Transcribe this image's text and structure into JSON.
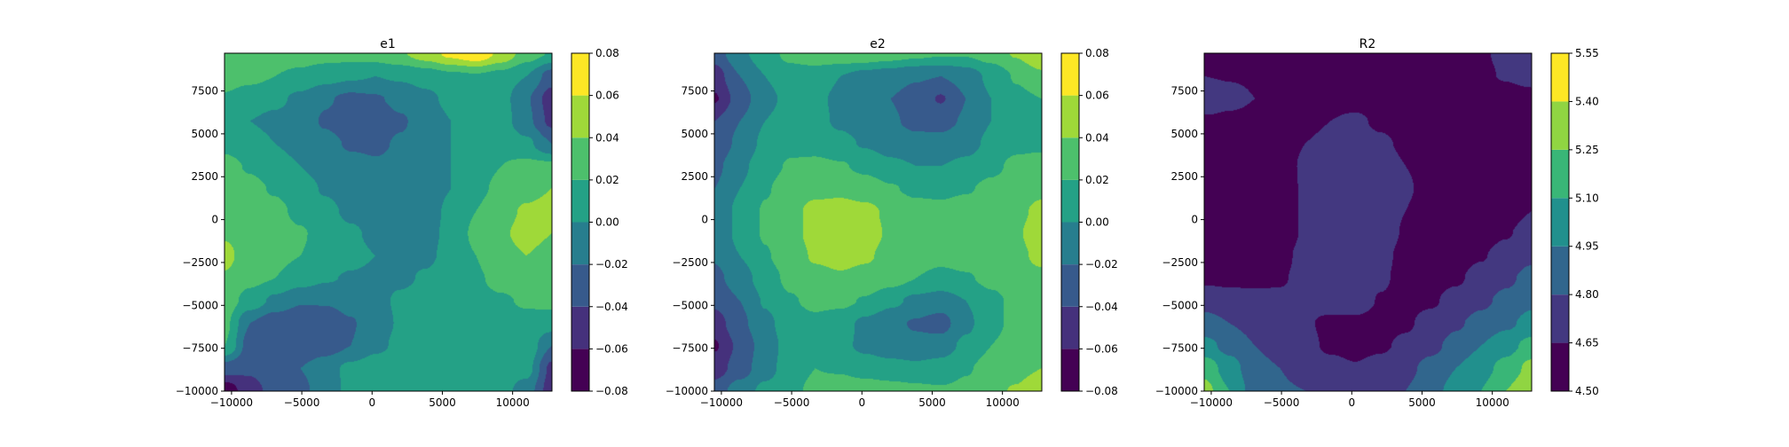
{
  "chart_data": [
    {
      "type": "contour",
      "title": "e1",
      "xlim": [
        -10500,
        12800
      ],
      "ylim": [
        -10000,
        9700
      ],
      "xticks": [
        -10000,
        -5000,
        0,
        5000,
        10000
      ],
      "xtick_labels": [
        "−10000",
        "−5000",
        "0",
        "5000",
        "10000"
      ],
      "yticks": [
        -10000,
        -7500,
        -5000,
        -2500,
        0,
        2500,
        5000,
        7500
      ],
      "ytick_labels": [
        "−10000",
        "−7500",
        "−5000",
        "−2500",
        "0",
        "2500",
        "5000",
        "7500"
      ],
      "levels": [
        -0.08,
        -0.06,
        -0.04,
        -0.02,
        0.0,
        0.02,
        0.04,
        0.06,
        0.08
      ],
      "colorbar_ticks": [
        -0.08,
        -0.06,
        -0.04,
        -0.02,
        0.0,
        0.02,
        0.04,
        0.06,
        0.08
      ],
      "colorbar_labels": [
        "−0.08",
        "−0.06",
        "−0.04",
        "−0.02",
        "0.00",
        "0.02",
        "0.04",
        "0.06",
        "0.08"
      ],
      "colormap": "viridis",
      "grid_shape": [
        16,
        14
      ],
      "z": [
        [
          -0.075,
          -0.045,
          -0.035,
          -0.025,
          -0.01,
          0.005,
          0.012,
          0.012,
          0.008,
          0.0,
          0.002,
          0.008,
          -0.01,
          -0.05
        ],
        [
          -0.03,
          -0.038,
          -0.032,
          -0.02,
          -0.008,
          0.005,
          0.012,
          0.015,
          0.012,
          0.005,
          0.003,
          0.01,
          0.008,
          -0.045
        ],
        [
          0.02,
          -0.03,
          -0.035,
          -0.035,
          -0.03,
          -0.02,
          -0.005,
          0.005,
          0.01,
          0.01,
          0.007,
          0.012,
          0.015,
          -0.02
        ],
        [
          0.025,
          -0.02,
          -0.035,
          -0.038,
          -0.035,
          -0.022,
          -0.008,
          0.002,
          0.01,
          0.012,
          0.012,
          0.012,
          0.015,
          0.01
        ],
        [
          0.03,
          0.012,
          -0.005,
          -0.018,
          -0.018,
          -0.012,
          -0.005,
          0.003,
          0.008,
          0.012,
          0.015,
          0.018,
          0.022,
          0.025
        ],
        [
          0.038,
          0.025,
          0.02,
          0.01,
          0.002,
          -0.002,
          -0.004,
          -0.003,
          0.002,
          0.01,
          0.018,
          0.025,
          0.03,
          0.03
        ],
        [
          0.045,
          0.03,
          0.025,
          0.02,
          0.012,
          0.005,
          0.0,
          -0.004,
          -0.003,
          0.005,
          0.02,
          0.035,
          0.04,
          0.035
        ],
        [
          0.038,
          0.032,
          0.028,
          0.022,
          0.012,
          0.003,
          -0.004,
          -0.008,
          -0.006,
          0.005,
          0.025,
          0.038,
          0.045,
          0.04
        ],
        [
          0.032,
          0.03,
          0.025,
          0.015,
          0.005,
          -0.004,
          -0.01,
          -0.012,
          -0.008,
          0.004,
          0.02,
          0.035,
          0.042,
          0.045
        ],
        [
          0.03,
          0.025,
          0.018,
          0.008,
          -0.002,
          -0.01,
          -0.015,
          -0.015,
          -0.01,
          0.0,
          0.015,
          0.025,
          0.035,
          0.04
        ],
        [
          0.026,
          0.018,
          0.01,
          0.0,
          -0.008,
          -0.015,
          -0.018,
          -0.016,
          -0.01,
          0.0,
          0.012,
          0.02,
          0.025,
          0.025
        ],
        [
          0.015,
          0.008,
          0.0,
          -0.008,
          -0.015,
          -0.022,
          -0.023,
          -0.018,
          -0.01,
          0.0,
          0.01,
          0.015,
          0.005,
          -0.02
        ],
        [
          0.01,
          0.0,
          -0.005,
          -0.012,
          -0.022,
          -0.03,
          -0.03,
          -0.022,
          -0.012,
          0.0,
          0.01,
          0.01,
          -0.015,
          -0.045
        ],
        [
          0.018,
          0.01,
          0.005,
          -0.005,
          -0.018,
          -0.025,
          -0.022,
          -0.015,
          -0.005,
          0.005,
          0.01,
          0.008,
          -0.018,
          -0.05
        ],
        [
          0.028,
          0.025,
          0.02,
          0.015,
          0.008,
          0.003,
          0.0,
          0.003,
          0.008,
          0.015,
          0.018,
          0.012,
          0.0,
          -0.03
        ],
        [
          0.035,
          0.032,
          0.03,
          0.03,
          0.028,
          0.028,
          0.03,
          0.038,
          0.05,
          0.065,
          0.075,
          0.055,
          0.03,
          0.018
        ]
      ]
    },
    {
      "type": "contour",
      "title": "e2",
      "xlim": [
        -10500,
        12800
      ],
      "ylim": [
        -10000,
        9700
      ],
      "xticks": [
        -10000,
        -5000,
        0,
        5000,
        10000
      ],
      "xtick_labels": [
        "−10000",
        "−5000",
        "0",
        "5000",
        "10000"
      ],
      "yticks": [
        -10000,
        -7500,
        -5000,
        -2500,
        0,
        2500,
        5000,
        7500
      ],
      "ytick_labels": [
        "−10000",
        "−7500",
        "−5000",
        "−2500",
        "0",
        "2500",
        "5000",
        "7500"
      ],
      "levels": [
        -0.08,
        -0.06,
        -0.04,
        -0.02,
        0.0,
        0.02,
        0.04,
        0.06,
        0.08
      ],
      "colorbar_ticks": [
        -0.08,
        -0.06,
        -0.04,
        -0.02,
        0.0,
        0.02,
        0.04,
        0.06,
        0.08
      ],
      "colorbar_labels": [
        "−0.08",
        "−0.06",
        "−0.04",
        "−0.02",
        "0.00",
        "0.02",
        "0.04",
        "0.06",
        "0.08"
      ],
      "colormap": "viridis",
      "grid_shape": [
        16,
        14
      ],
      "z": [
        [
          -0.03,
          -0.01,
          0.005,
          0.015,
          0.025,
          0.03,
          0.03,
          0.028,
          0.025,
          0.022,
          0.025,
          0.035,
          0.042,
          0.06
        ],
        [
          -0.05,
          -0.03,
          -0.008,
          0.01,
          0.02,
          0.018,
          0.012,
          0.008,
          0.005,
          0.008,
          0.018,
          0.028,
          0.032,
          0.04
        ],
        [
          -0.062,
          -0.035,
          -0.01,
          0.008,
          0.012,
          0.005,
          -0.005,
          -0.012,
          -0.015,
          -0.01,
          0.005,
          0.02,
          0.028,
          0.035
        ],
        [
          -0.05,
          -0.025,
          -0.005,
          0.01,
          0.015,
          0.008,
          -0.005,
          -0.015,
          -0.022,
          -0.028,
          -0.005,
          0.015,
          0.025,
          0.03
        ],
        [
          -0.035,
          -0.02,
          0.002,
          0.018,
          0.025,
          0.025,
          0.018,
          0.005,
          -0.005,
          -0.01,
          0.0,
          0.015,
          0.025,
          0.03
        ],
        [
          -0.025,
          -0.01,
          0.01,
          0.025,
          0.035,
          0.038,
          0.035,
          0.028,
          0.02,
          0.015,
          0.018,
          0.025,
          0.03,
          0.035
        ],
        [
          -0.018,
          0.0,
          0.018,
          0.032,
          0.042,
          0.045,
          0.042,
          0.035,
          0.028,
          0.025,
          0.028,
          0.032,
          0.035,
          0.045
        ],
        [
          -0.015,
          0.005,
          0.022,
          0.035,
          0.045,
          0.05,
          0.046,
          0.038,
          0.03,
          0.028,
          0.03,
          0.035,
          0.038,
          0.05
        ],
        [
          -0.015,
          0.005,
          0.022,
          0.035,
          0.045,
          0.048,
          0.045,
          0.036,
          0.028,
          0.025,
          0.03,
          0.035,
          0.035,
          0.045
        ],
        [
          -0.02,
          0.0,
          0.018,
          0.03,
          0.035,
          0.035,
          0.03,
          0.022,
          0.015,
          0.015,
          0.018,
          0.025,
          0.03,
          0.035
        ],
        [
          -0.025,
          -0.005,
          0.012,
          0.022,
          0.025,
          0.022,
          0.015,
          0.005,
          0.0,
          0.0,
          0.005,
          0.015,
          0.025,
          0.03
        ],
        [
          -0.035,
          -0.015,
          0.005,
          0.015,
          0.012,
          0.005,
          -0.002,
          -0.01,
          -0.015,
          -0.015,
          -0.008,
          0.005,
          0.015,
          0.015
        ],
        [
          -0.04,
          -0.02,
          0.0,
          0.008,
          0.005,
          -0.003,
          -0.01,
          -0.018,
          -0.024,
          -0.025,
          -0.018,
          0.0,
          0.012,
          0.01
        ],
        [
          -0.062,
          -0.03,
          -0.005,
          0.005,
          0.004,
          -0.004,
          -0.012,
          -0.02,
          -0.028,
          -0.042,
          -0.02,
          0.0,
          0.015,
          0.02
        ],
        [
          -0.05,
          -0.02,
          0.0,
          0.012,
          0.01,
          0.0,
          -0.008,
          -0.012,
          -0.018,
          -0.02,
          -0.012,
          0.005,
          0.022,
          0.035
        ],
        [
          -0.03,
          -0.005,
          0.012,
          0.025,
          0.032,
          0.036,
          0.035,
          0.03,
          0.025,
          0.022,
          0.022,
          0.03,
          0.042,
          0.06
        ]
      ]
    },
    {
      "type": "contour",
      "title": "R2",
      "xlim": [
        -10500,
        12800
      ],
      "ylim": [
        -10000,
        9700
      ],
      "xticks": [
        -10000,
        -5000,
        0,
        5000,
        10000
      ],
      "xtick_labels": [
        "−10000",
        "−5000",
        "0",
        "5000",
        "10000"
      ],
      "yticks": [
        -10000,
        -7500,
        -5000,
        -2500,
        0,
        2500,
        5000,
        7500
      ],
      "ytick_labels": [
        "−10000",
        "−7500",
        "−5000",
        "−2500",
        "0",
        "2500",
        "5000",
        "7500"
      ],
      "levels": [
        4.5,
        4.65,
        4.8,
        4.95,
        5.1,
        5.25,
        5.4,
        5.55
      ],
      "colorbar_ticks": [
        4.5,
        4.65,
        4.8,
        4.95,
        5.1,
        5.25,
        5.4,
        5.55
      ],
      "colorbar_labels": [
        "4.50",
        "4.65",
        "4.80",
        "4.95",
        "5.10",
        "5.25",
        "5.40",
        "5.55"
      ],
      "colormap": "viridis",
      "grid_shape": [
        16,
        14
      ],
      "z": [
        [
          5.3,
          5.1,
          4.88,
          4.82,
          4.8,
          4.75,
          4.7,
          4.75,
          4.8,
          4.9,
          5.0,
          5.1,
          5.25,
          5.4
        ],
        [
          5.2,
          5.02,
          4.85,
          4.8,
          4.74,
          4.69,
          4.66,
          4.7,
          4.76,
          4.85,
          4.95,
          5.05,
          5.15,
          5.3
        ],
        [
          5.0,
          4.9,
          4.8,
          4.74,
          4.68,
          4.63,
          4.61,
          4.63,
          4.68,
          4.76,
          4.85,
          4.95,
          5.05,
          5.15
        ],
        [
          4.85,
          4.8,
          4.75,
          4.7,
          4.66,
          4.63,
          4.62,
          4.6,
          4.63,
          4.7,
          4.78,
          4.85,
          4.92,
          5.0
        ],
        [
          4.75,
          4.72,
          4.69,
          4.67,
          4.67,
          4.69,
          4.72,
          4.64,
          4.61,
          4.63,
          4.7,
          4.77,
          4.84,
          4.92
        ],
        [
          4.62,
          4.61,
          4.62,
          4.64,
          4.68,
          4.72,
          4.74,
          4.67,
          4.61,
          4.6,
          4.63,
          4.7,
          4.77,
          4.85
        ],
        [
          4.58,
          4.58,
          4.59,
          4.62,
          4.68,
          4.72,
          4.73,
          4.68,
          4.62,
          4.59,
          4.6,
          4.64,
          4.7,
          4.77
        ],
        [
          4.57,
          4.57,
          4.58,
          4.6,
          4.66,
          4.72,
          4.73,
          4.7,
          4.64,
          4.59,
          4.58,
          4.6,
          4.64,
          4.7
        ],
        [
          4.57,
          4.57,
          4.58,
          4.6,
          4.66,
          4.71,
          4.72,
          4.7,
          4.65,
          4.6,
          4.58,
          4.58,
          4.6,
          4.65
        ],
        [
          4.58,
          4.58,
          4.59,
          4.61,
          4.66,
          4.7,
          4.71,
          4.69,
          4.66,
          4.62,
          4.59,
          4.58,
          4.6,
          4.63
        ],
        [
          4.6,
          4.6,
          4.6,
          4.62,
          4.66,
          4.69,
          4.7,
          4.68,
          4.65,
          4.62,
          4.6,
          4.59,
          4.6,
          4.62
        ],
        [
          4.6,
          4.6,
          4.6,
          4.62,
          4.65,
          4.67,
          4.68,
          4.66,
          4.64,
          4.61,
          4.6,
          4.59,
          4.59,
          4.61
        ],
        [
          4.62,
          4.61,
          4.6,
          4.61,
          4.63,
          4.65,
          4.66,
          4.64,
          4.62,
          4.6,
          4.59,
          4.59,
          4.59,
          4.6
        ],
        [
          4.78,
          4.7,
          4.65,
          4.62,
          4.62,
          4.63,
          4.63,
          4.62,
          4.61,
          4.6,
          4.59,
          4.59,
          4.59,
          4.6
        ],
        [
          4.65,
          4.64,
          4.63,
          4.62,
          4.61,
          4.6,
          4.6,
          4.6,
          4.6,
          4.6,
          4.61,
          4.63,
          4.66,
          4.7
        ],
        [
          4.62,
          4.62,
          4.61,
          4.61,
          4.6,
          4.6,
          4.6,
          4.6,
          4.6,
          4.61,
          4.62,
          4.64,
          4.67,
          4.75
        ]
      ]
    }
  ]
}
